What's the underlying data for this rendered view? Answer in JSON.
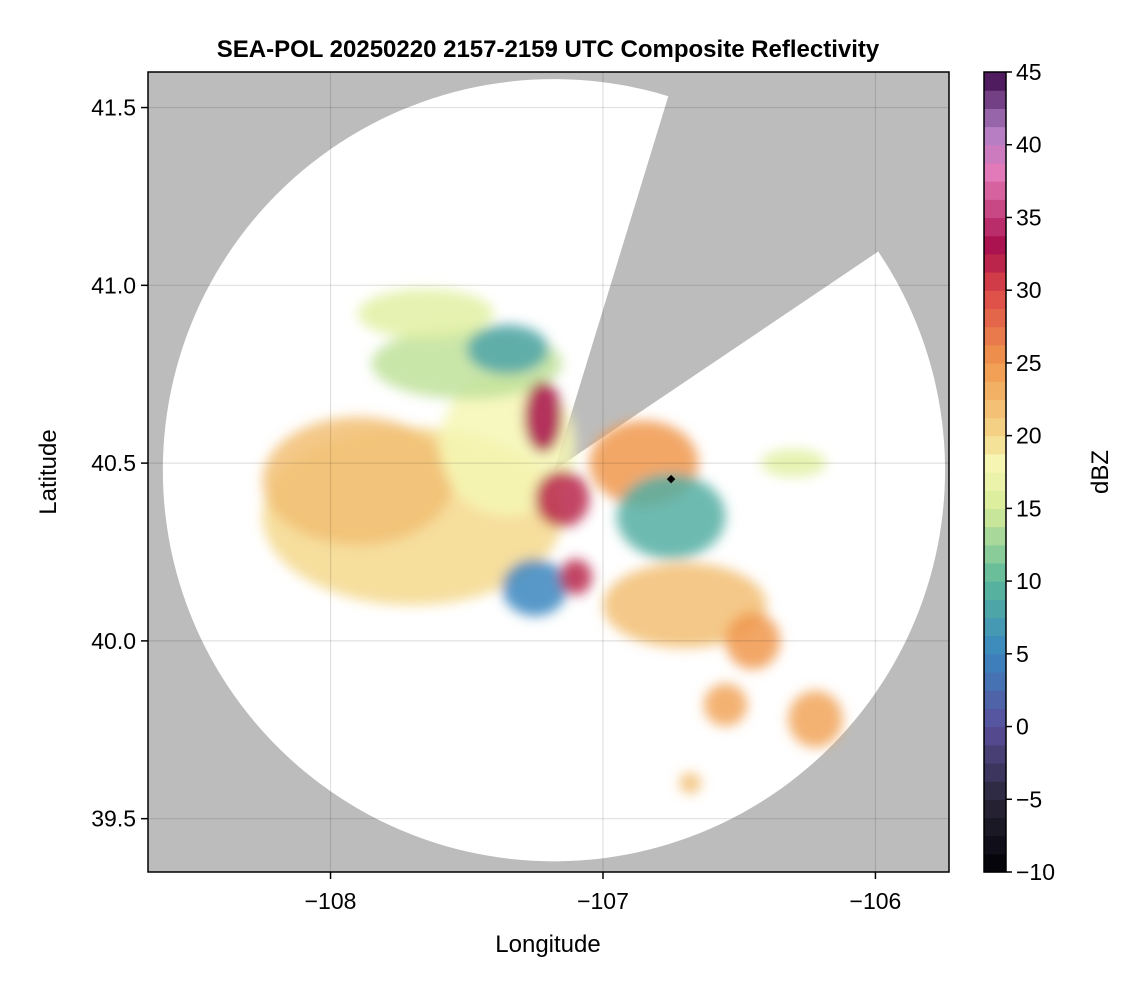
{
  "chart_data": {
    "type": "heatmap",
    "title": "SEA-POL 20250220 2157-2159 UTC Composite Reflectivity",
    "xlabel": "Longitude",
    "ylabel": "Latitude",
    "xlim": [
      -108.67,
      -105.73
    ],
    "ylim": [
      39.35,
      41.6
    ],
    "x_ticks": [
      {
        "value": -108,
        "label": "−108"
      },
      {
        "value": -107,
        "label": "−107"
      },
      {
        "value": -106,
        "label": "−106"
      }
    ],
    "y_ticks": [
      {
        "value": 39.5,
        "label": "39.5"
      },
      {
        "value": 40.0,
        "label": "40.0"
      },
      {
        "value": 40.5,
        "label": "40.5"
      },
      {
        "value": 41.0,
        "label": "41.0"
      },
      {
        "value": 41.5,
        "label": "41.5"
      }
    ],
    "grid": true,
    "background_color": "#bcbcbc",
    "coverage_color": "#ffffff",
    "radar": {
      "center_lon": -107.18,
      "center_lat": 40.48,
      "range_deg_lat": 1.1,
      "blocked_sector_bearing_deg": [
        17,
        56
      ]
    },
    "radar_site_marker": {
      "lon": -106.75,
      "lat": 40.455,
      "color": "#000000"
    },
    "echo_regions": [
      {
        "name": "",
        "lon": -107.7,
        "lat": 40.35,
        "rx": 0.55,
        "ry": 0.25,
        "dbz": 20
      },
      {
        "name": "",
        "lon": -107.9,
        "lat": 40.45,
        "rx": 0.35,
        "ry": 0.18,
        "dbz": 22
      },
      {
        "name": "",
        "lon": -107.35,
        "lat": 40.55,
        "rx": 0.25,
        "ry": 0.2,
        "dbz": 18
      },
      {
        "name": "",
        "lon": -107.5,
        "lat": 40.78,
        "rx": 0.35,
        "ry": 0.1,
        "dbz": 14
      },
      {
        "name": "",
        "lon": -107.35,
        "lat": 40.82,
        "rx": 0.15,
        "ry": 0.07,
        "dbz": 8
      },
      {
        "name": "",
        "lon": -107.65,
        "lat": 40.92,
        "rx": 0.25,
        "ry": 0.07,
        "dbz": 16
      },
      {
        "name": "",
        "lon": -107.22,
        "lat": 40.63,
        "rx": 0.07,
        "ry": 0.1,
        "dbz": 33
      },
      {
        "name": "",
        "lon": -107.15,
        "lat": 40.4,
        "rx": 0.1,
        "ry": 0.08,
        "dbz": 32
      },
      {
        "name": "",
        "lon": -106.85,
        "lat": 40.5,
        "rx": 0.2,
        "ry": 0.12,
        "dbz": 25
      },
      {
        "name": "",
        "lon": -106.75,
        "lat": 40.35,
        "rx": 0.2,
        "ry": 0.12,
        "dbz": 9
      },
      {
        "name": "",
        "lon": -107.25,
        "lat": 40.15,
        "rx": 0.12,
        "ry": 0.08,
        "dbz": 5
      },
      {
        "name": "",
        "lon": -107.1,
        "lat": 40.18,
        "rx": 0.06,
        "ry": 0.05,
        "dbz": 32
      },
      {
        "name": "",
        "lon": -106.7,
        "lat": 40.1,
        "rx": 0.3,
        "ry": 0.12,
        "dbz": 22
      },
      {
        "name": "",
        "lon": -106.45,
        "lat": 40.0,
        "rx": 0.1,
        "ry": 0.08,
        "dbz": 25
      },
      {
        "name": "",
        "lon": -106.55,
        "lat": 39.82,
        "rx": 0.08,
        "ry": 0.06,
        "dbz": 24
      },
      {
        "name": "",
        "lon": -106.22,
        "lat": 39.78,
        "rx": 0.1,
        "ry": 0.08,
        "dbz": 24
      },
      {
        "name": "",
        "lon": -106.3,
        "lat": 40.5,
        "rx": 0.12,
        "ry": 0.04,
        "dbz": 16
      },
      {
        "name": "",
        "lon": -106.68,
        "lat": 39.6,
        "rx": 0.04,
        "ry": 0.03,
        "dbz": 22
      }
    ],
    "colorbar": {
      "label": "dBZ",
      "min": -10,
      "max": 45,
      "ticks": [
        {
          "value": 45,
          "label": "45"
        },
        {
          "value": 40,
          "label": "40"
        },
        {
          "value": 35,
          "label": "35"
        },
        {
          "value": 30,
          "label": "30"
        },
        {
          "value": 25,
          "label": "25"
        },
        {
          "value": 20,
          "label": "20"
        },
        {
          "value": 15,
          "label": "15"
        },
        {
          "value": 10,
          "label": "10"
        },
        {
          "value": 5,
          "label": "5"
        },
        {
          "value": 0,
          "label": "0"
        },
        {
          "value": -5,
          "label": "−5"
        },
        {
          "value": -10,
          "label": "−10"
        }
      ],
      "stops": [
        {
          "value": -10,
          "color": "#000004"
        },
        {
          "value": -5,
          "color": "#2a2638"
        },
        {
          "value": 0,
          "color": "#5a4e9a"
        },
        {
          "value": 5,
          "color": "#3a86c0"
        },
        {
          "value": 10,
          "color": "#5ab89a"
        },
        {
          "value": 15,
          "color": "#d8ec9a"
        },
        {
          "value": 18,
          "color": "#f6f7b4"
        },
        {
          "value": 20,
          "color": "#f4d88c"
        },
        {
          "value": 25,
          "color": "#f0984e"
        },
        {
          "value": 30,
          "color": "#dc4848"
        },
        {
          "value": 33,
          "color": "#a8104c"
        },
        {
          "value": 38,
          "color": "#e47ab8"
        },
        {
          "value": 41,
          "color": "#b07ec4"
        },
        {
          "value": 45,
          "color": "#3e0a4e"
        }
      ]
    }
  }
}
